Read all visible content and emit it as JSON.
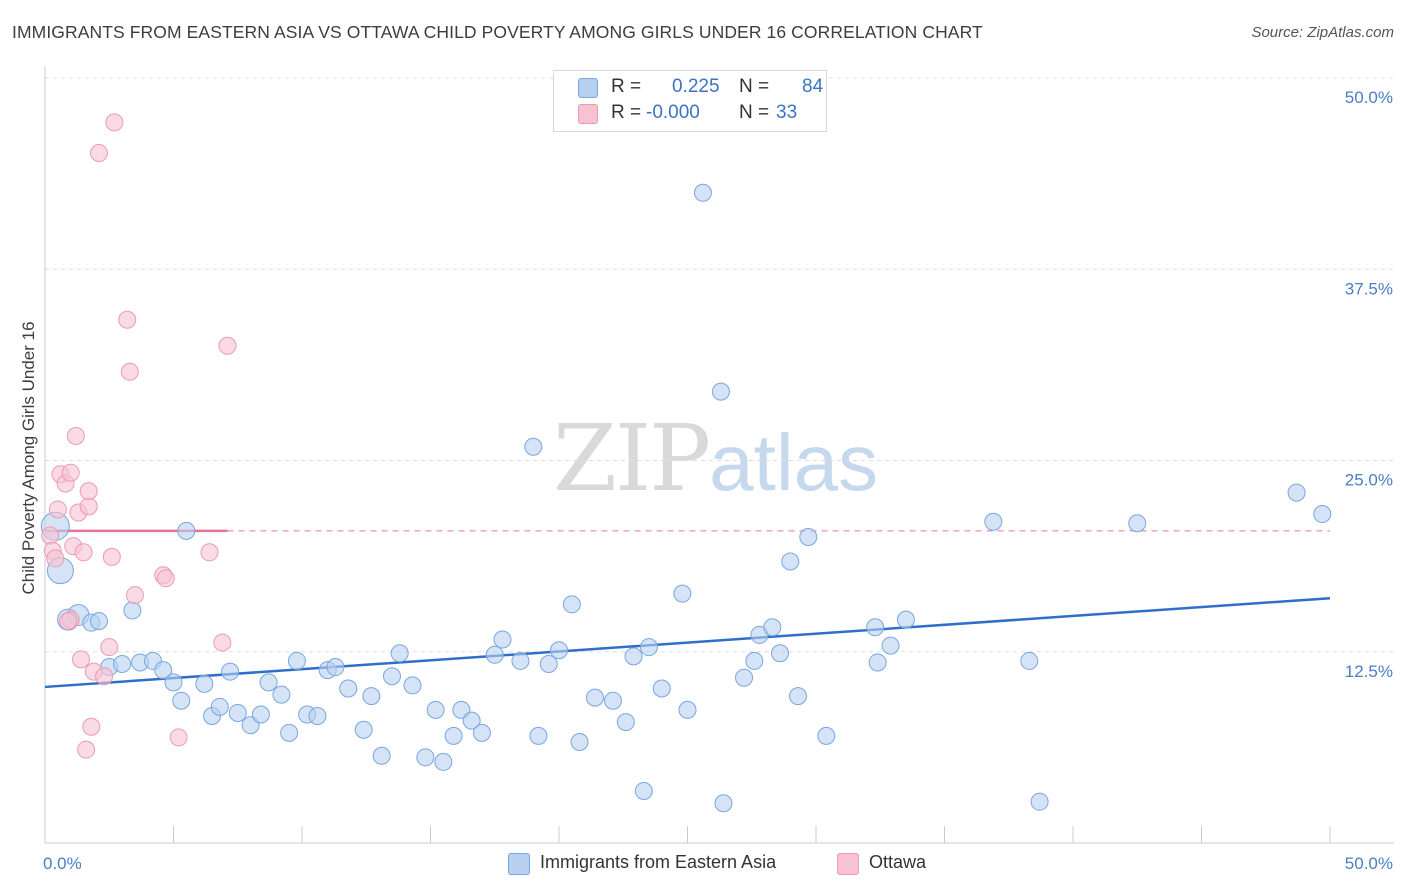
{
  "title": "IMMIGRANTS FROM EASTERN ASIA VS OTTAWA CHILD POVERTY AMONG GIRLS UNDER 16 CORRELATION CHART",
  "source": "Source: ZipAtlas.com",
  "watermark": {
    "zip": "ZIP",
    "atlas": "atlas"
  },
  "legend": {
    "r_label": "R =",
    "n_label": "N =",
    "series1": {
      "r": "0.225",
      "n": "84"
    },
    "series2": {
      "r": "-0.000",
      "n": "33"
    }
  },
  "bottom_legend": {
    "series1": "Immigrants from Eastern Asia",
    "series2": "Ottawa"
  },
  "colors": {
    "series1_fill": "#b8d0f0",
    "series1_stroke": "#7aa6e0",
    "series1_line": "#2f6fc8",
    "series2_fill": "#f7c3d3",
    "series2_stroke": "#ee9ab4",
    "series2_line": "#e8739a",
    "tick": "#4a7dc6",
    "grid": "#dddddd"
  },
  "chart_data": {
    "type": "scatter",
    "title": "IMMIGRANTS FROM EASTERN ASIA VS OTTAWA CHILD POVERTY AMONG GIRLS UNDER 16 CORRELATION CHART",
    "xlabel": "",
    "ylabel": "Child Poverty Among Girls Under 16",
    "xlim": [
      0,
      50
    ],
    "ylim": [
      0,
      50
    ],
    "x_tick_labels": [
      "0.0%",
      "50.0%"
    ],
    "y_ticks": [
      12.5,
      25.0,
      37.5,
      50.0
    ],
    "y_tick_labels": [
      "12.5%",
      "25.0%",
      "37.5%",
      "50.0%"
    ],
    "grid": "horizontal dashed",
    "legend_placement": "top-center",
    "series": [
      {
        "name": "Immigrants from Eastern Asia",
        "trend": {
          "x": [
            0,
            50
          ],
          "y": [
            10.2,
            16.0
          ]
        },
        "points": [
          [
            0.4,
            20.7
          ],
          [
            0.6,
            17.8
          ],
          [
            0.9,
            14.6
          ],
          [
            1.3,
            14.9
          ],
          [
            1.8,
            14.4
          ],
          [
            2.1,
            14.5
          ],
          [
            2.5,
            11.5
          ],
          [
            3.0,
            11.7
          ],
          [
            3.4,
            15.2
          ],
          [
            3.7,
            11.8
          ],
          [
            4.2,
            11.9
          ],
          [
            4.6,
            11.3
          ],
          [
            5.0,
            10.5
          ],
          [
            5.3,
            9.3
          ],
          [
            5.5,
            20.4
          ],
          [
            6.2,
            10.4
          ],
          [
            6.5,
            8.3
          ],
          [
            6.8,
            8.9
          ],
          [
            7.2,
            11.2
          ],
          [
            7.5,
            8.5
          ],
          [
            8.0,
            7.7
          ],
          [
            8.4,
            8.4
          ],
          [
            8.7,
            10.5
          ],
          [
            9.2,
            9.7
          ],
          [
            9.5,
            7.2
          ],
          [
            9.8,
            11.9
          ],
          [
            10.2,
            8.4
          ],
          [
            10.6,
            8.3
          ],
          [
            11.0,
            11.3
          ],
          [
            11.3,
            11.5
          ],
          [
            11.8,
            10.1
          ],
          [
            12.4,
            7.4
          ],
          [
            12.7,
            9.6
          ],
          [
            13.1,
            5.7
          ],
          [
            13.5,
            10.9
          ],
          [
            13.8,
            12.4
          ],
          [
            14.3,
            10.3
          ],
          [
            14.8,
            5.6
          ],
          [
            15.2,
            8.7
          ],
          [
            15.5,
            5.3
          ],
          [
            15.9,
            7.0
          ],
          [
            16.2,
            8.7
          ],
          [
            16.6,
            8.0
          ],
          [
            17.0,
            7.2
          ],
          [
            17.5,
            12.3
          ],
          [
            17.8,
            13.3
          ],
          [
            18.5,
            11.9
          ],
          [
            19.2,
            7.0
          ],
          [
            19.0,
            25.9
          ],
          [
            19.6,
            11.7
          ],
          [
            20.0,
            12.6
          ],
          [
            20.5,
            15.6
          ],
          [
            20.8,
            6.6
          ],
          [
            21.4,
            9.5
          ],
          [
            22.1,
            9.3
          ],
          [
            22.6,
            7.9
          ],
          [
            22.9,
            12.2
          ],
          [
            23.3,
            3.4
          ],
          [
            23.5,
            12.8
          ],
          [
            24.0,
            10.1
          ],
          [
            24.8,
            16.3
          ],
          [
            25.0,
            8.7
          ],
          [
            25.6,
            42.5
          ],
          [
            26.3,
            29.5
          ],
          [
            26.4,
            2.6
          ],
          [
            27.2,
            10.8
          ],
          [
            27.6,
            11.9
          ],
          [
            27.8,
            13.6
          ],
          [
            28.3,
            14.1
          ],
          [
            28.6,
            12.4
          ],
          [
            29.0,
            18.4
          ],
          [
            29.3,
            9.6
          ],
          [
            29.7,
            20.0
          ],
          [
            30.4,
            7.0
          ],
          [
            32.3,
            14.1
          ],
          [
            32.4,
            11.8
          ],
          [
            32.9,
            12.9
          ],
          [
            33.5,
            14.6
          ],
          [
            36.9,
            21.0
          ],
          [
            38.3,
            11.9
          ],
          [
            38.7,
            2.7
          ],
          [
            42.5,
            20.9
          ],
          [
            48.7,
            22.9
          ],
          [
            49.7,
            21.5
          ]
        ]
      },
      {
        "name": "Ottawa",
        "trend": {
          "x": [
            0,
            50
          ],
          "y": [
            20.4,
            20.4
          ]
        },
        "points": [
          [
            0.2,
            20.1
          ],
          [
            0.3,
            19.1
          ],
          [
            0.4,
            18.6
          ],
          [
            0.5,
            21.8
          ],
          [
            0.6,
            24.1
          ],
          [
            0.8,
            23.5
          ],
          [
            1.0,
            24.2
          ],
          [
            1.1,
            19.4
          ],
          [
            1.2,
            26.6
          ],
          [
            1.3,
            21.6
          ],
          [
            1.0,
            14.6
          ],
          [
            1.4,
            12.0
          ],
          [
            1.5,
            19.0
          ],
          [
            1.6,
            6.1
          ],
          [
            1.7,
            22.0
          ],
          [
            1.7,
            23.0
          ],
          [
            1.8,
            7.6
          ],
          [
            1.9,
            11.2
          ],
          [
            2.1,
            45.1
          ],
          [
            2.3,
            10.9
          ],
          [
            2.5,
            12.8
          ],
          [
            2.6,
            18.7
          ],
          [
            2.7,
            47.1
          ],
          [
            3.2,
            34.2
          ],
          [
            3.3,
            30.8
          ],
          [
            3.5,
            16.2
          ],
          [
            4.6,
            17.5
          ],
          [
            4.7,
            17.3
          ],
          [
            5.2,
            6.9
          ],
          [
            6.4,
            19.0
          ],
          [
            6.9,
            13.1
          ],
          [
            7.1,
            32.5
          ],
          [
            0.9,
            14.5
          ]
        ]
      }
    ]
  }
}
